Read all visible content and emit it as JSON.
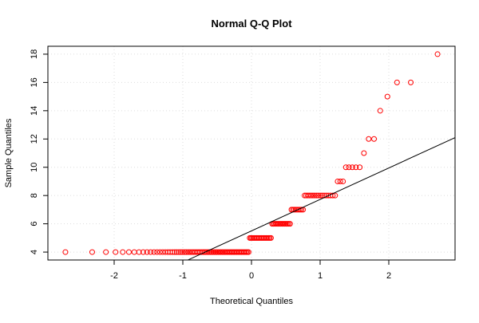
{
  "chart_data": {
    "type": "scatter",
    "title": "Normal Q-Q Plot",
    "x_label": "Theoretical Quantiles",
    "y_label": "Sample Quantiles",
    "series": [
      {
        "color": "#ff0000",
        "x": [
          -2.71,
          -2.32,
          -2.12,
          -1.98,
          -1.875,
          -1.785,
          -1.707,
          -1.638,
          -1.577,
          -1.521,
          -1.469,
          -1.42,
          -1.375,
          -1.333,
          -1.293,
          -1.255,
          -1.218,
          -1.184,
          -1.15,
          -1.118,
          -1.088,
          -1.057,
          -1.028,
          -1.0,
          -0.972,
          -0.946,
          -0.919,
          -0.894,
          -0.868,
          -0.844,
          -0.82,
          -0.796,
          -0.773,
          -0.751,
          -0.728,
          -0.707,
          -0.685,
          -0.664,
          -0.643,
          -0.622,
          -0.602,
          -0.582,
          -0.562,
          -0.542,
          -0.522,
          -0.503,
          -0.484,
          -0.465,
          -0.447,
          -0.428,
          -0.41,
          -0.391,
          -0.373,
          -0.355,
          -0.337,
          -0.319,
          -0.301,
          -0.284,
          -0.266,
          -0.249,
          -0.231,
          -0.214,
          -0.197,
          -0.179,
          -0.162,
          -0.145,
          -0.128,
          -0.11,
          -0.093,
          -0.076,
          -0.059,
          -0.042,
          -0.025,
          -0.008,
          0.008,
          0.025,
          0.042,
          0.059,
          0.076,
          0.093,
          0.11,
          0.128,
          0.145,
          0.162,
          0.179,
          0.197,
          0.214,
          0.231,
          0.249,
          0.266,
          0.284,
          0.301,
          0.319,
          0.337,
          0.355,
          0.373,
          0.391,
          0.41,
          0.428,
          0.447,
          0.465,
          0.484,
          0.503,
          0.522,
          0.542,
          0.562,
          0.582,
          0.602,
          0.622,
          0.643,
          0.664,
          0.685,
          0.707,
          0.728,
          0.751,
          0.773,
          0.796,
          0.82,
          0.844,
          0.868,
          0.894,
          0.919,
          0.946,
          0.972,
          1.0,
          1.028,
          1.057,
          1.088,
          1.118,
          1.15,
          1.184,
          1.218,
          1.255,
          1.293,
          1.333,
          1.375,
          1.42,
          1.469,
          1.521,
          1.577,
          1.638,
          1.707,
          1.785,
          1.875,
          1.98,
          2.12,
          2.32,
          2.71
        ],
        "values": [
          4,
          4,
          4,
          4,
          4,
          4,
          4,
          4,
          4,
          4,
          4,
          4,
          4,
          4,
          4,
          4,
          4,
          4,
          4,
          4,
          4,
          4,
          4,
          4,
          4,
          4,
          4,
          4,
          4,
          4,
          4,
          4,
          4,
          4,
          4,
          4,
          4,
          4,
          4,
          4,
          4,
          4,
          4,
          4,
          4,
          4,
          4,
          4,
          4,
          4,
          4,
          4,
          4,
          4,
          4,
          4,
          4,
          4,
          4,
          4,
          4,
          4,
          4,
          4,
          4,
          4,
          4,
          4,
          4,
          4,
          4,
          4,
          5,
          5,
          5,
          5,
          5,
          5,
          5,
          5,
          5,
          5,
          5,
          5,
          5,
          5,
          5,
          5,
          5,
          5,
          5,
          6,
          6,
          6,
          6,
          6,
          6,
          6,
          6,
          6,
          6,
          6,
          6,
          6,
          6,
          6,
          7,
          7,
          7,
          7,
          7,
          7,
          7,
          7,
          7,
          8,
          8,
          8,
          8,
          8,
          8,
          8,
          8,
          8,
          8,
          8,
          8,
          8,
          8,
          8,
          8,
          8,
          9,
          9,
          9,
          10,
          10,
          10,
          10,
          10,
          11,
          12,
          12,
          14,
          15,
          16,
          16,
          18
        ]
      }
    ],
    "reference_line": {
      "intercept": 5.5,
      "slope": 2.225,
      "color": "#000000"
    },
    "xlim": [
      -2.965,
      2.965
    ],
    "ylim": [
      3.44,
      18.56
    ],
    "xticks": [
      -2,
      -1,
      0,
      1,
      2
    ],
    "yticks": [
      4,
      6,
      8,
      10,
      12,
      14,
      16,
      18
    ],
    "grid": true
  }
}
